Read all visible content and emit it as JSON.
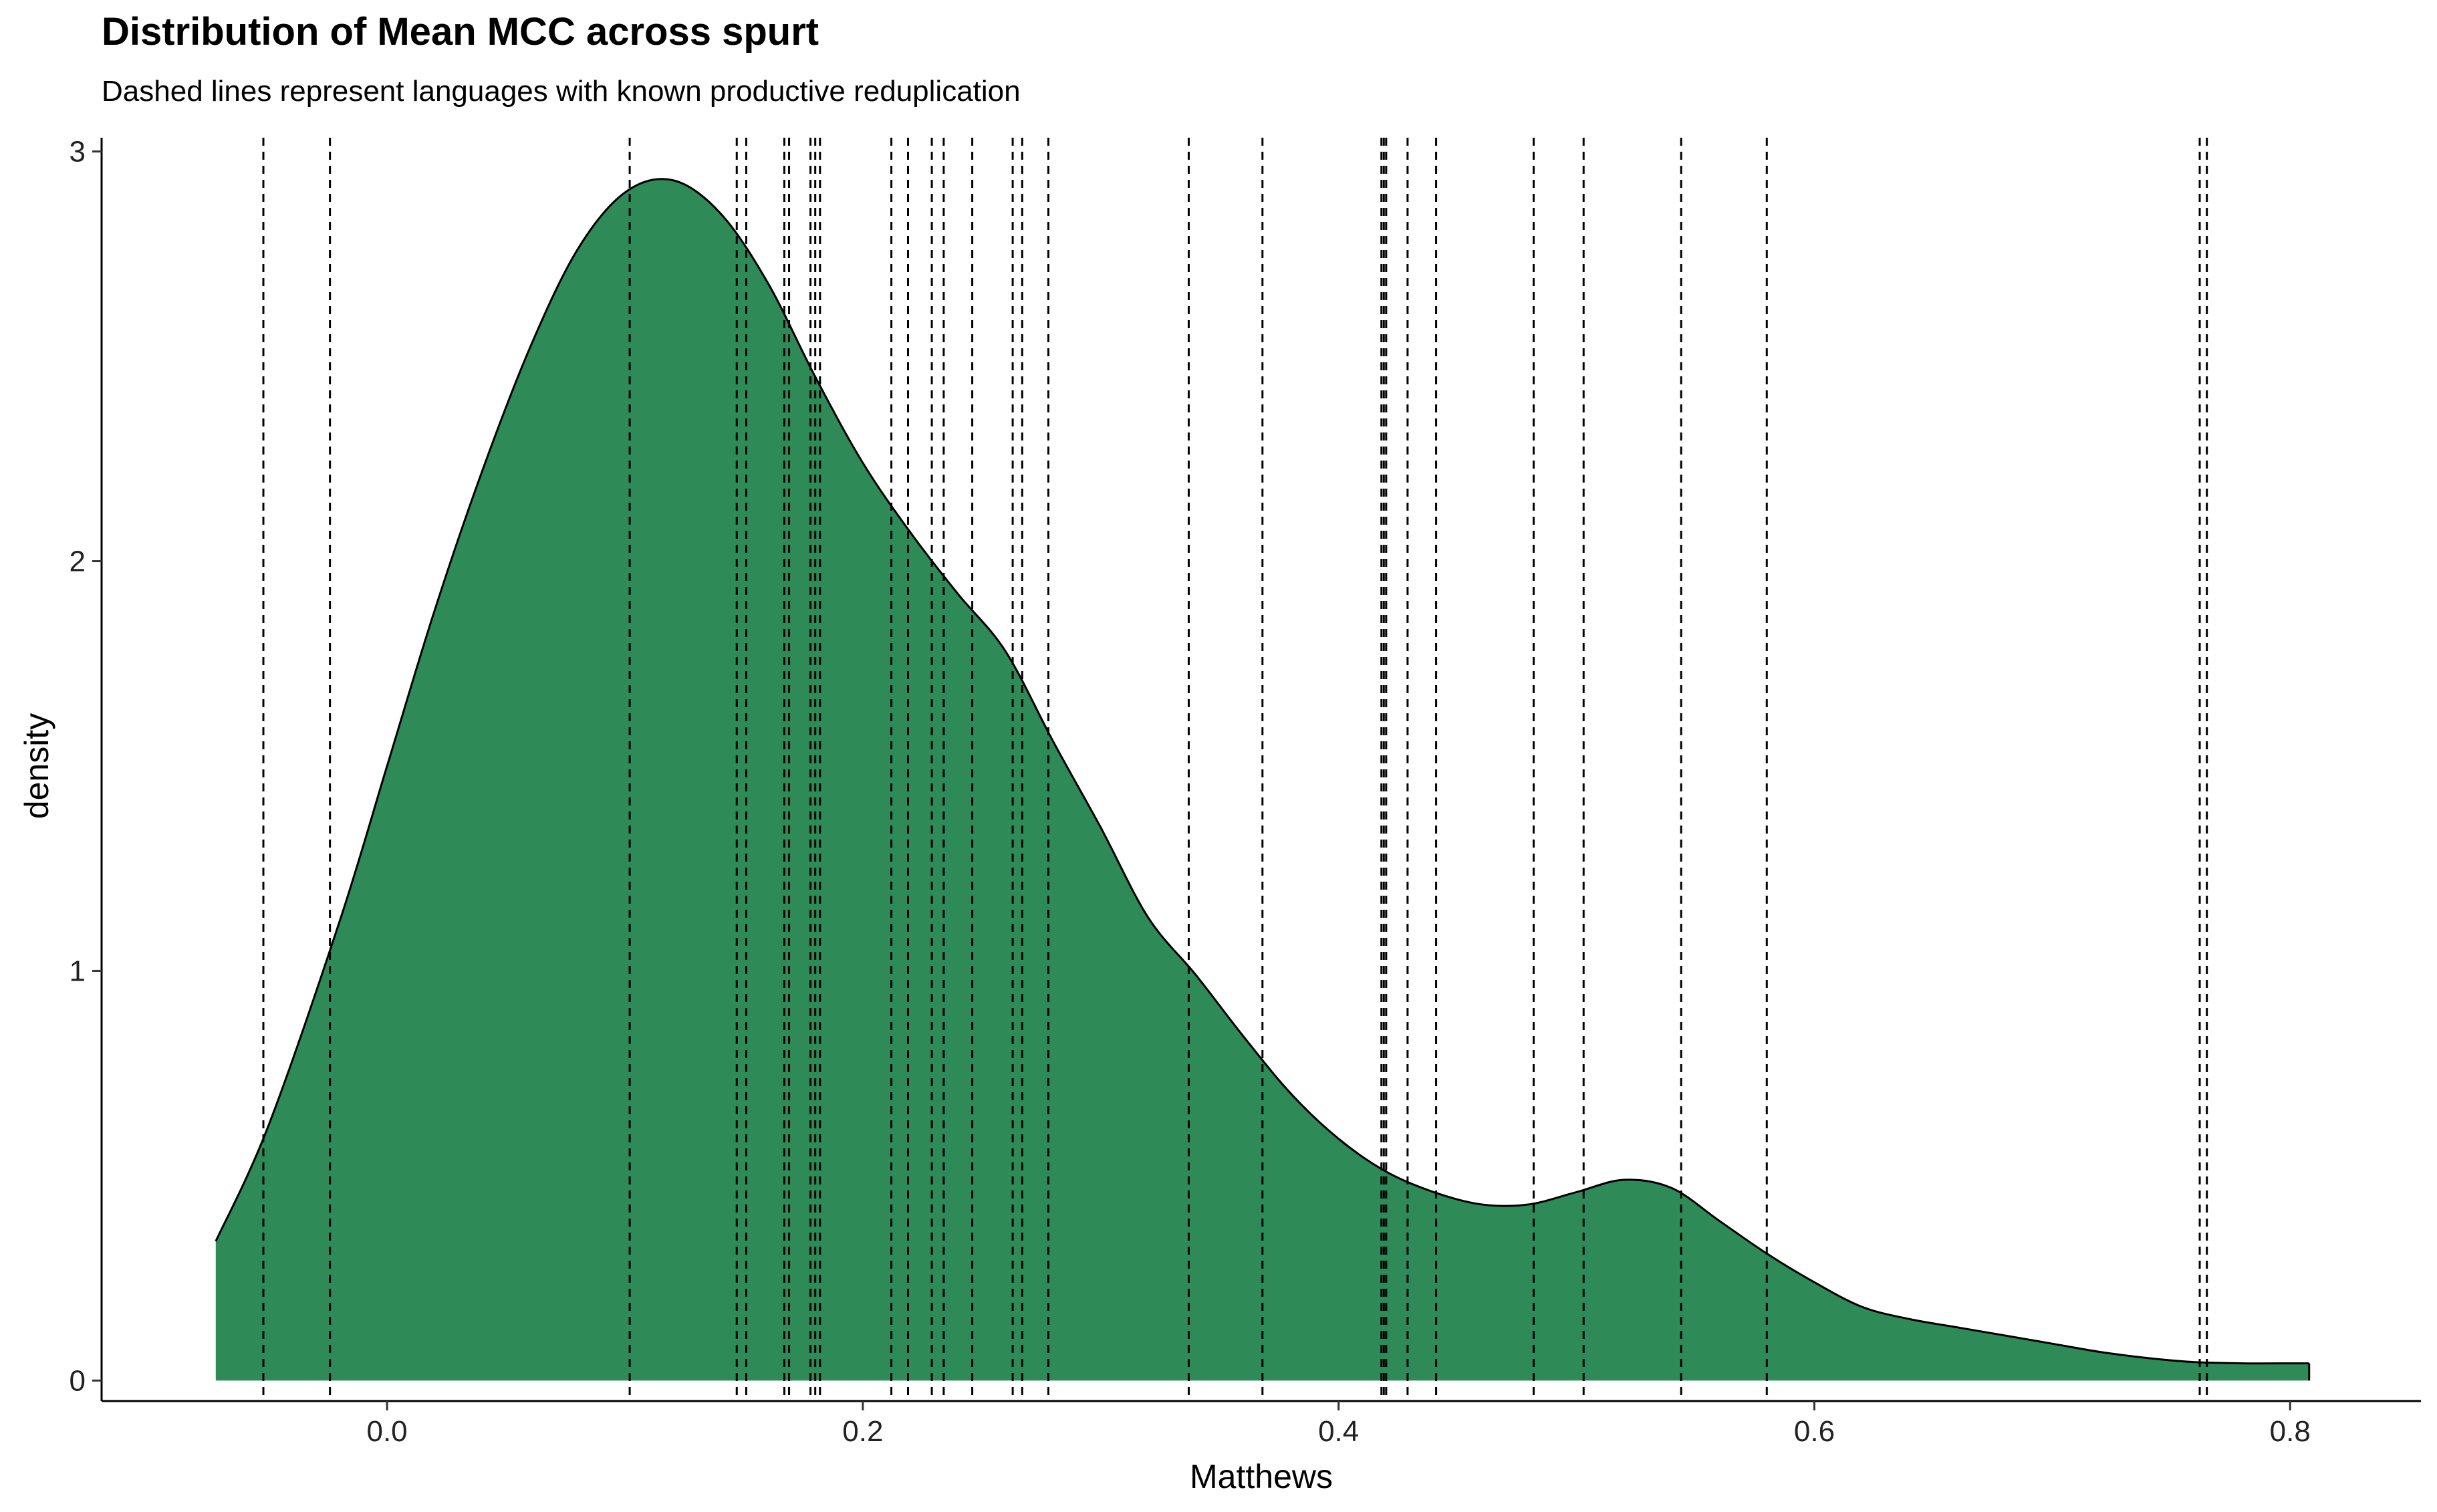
{
  "chart_data": {
    "type": "area",
    "title": "Distribution of Mean MCC across spurt",
    "subtitle": "Dashed lines represent languages with known productive reduplication",
    "xlabel": "Matthews",
    "ylabel": "density",
    "xlim": [
      -0.12,
      0.855
    ],
    "ylim": [
      -0.05,
      3.05
    ],
    "x_ticks": [
      0.0,
      0.2,
      0.4,
      0.6,
      0.8
    ],
    "x_tick_labels": [
      "0.0",
      "0.2",
      "0.4",
      "0.6",
      "0.8"
    ],
    "y_ticks": [
      0,
      1,
      2,
      3
    ],
    "y_tick_labels": [
      "0",
      "1",
      "2",
      "3"
    ],
    "grid": false,
    "fill_color": "#2e8b57",
    "line_color": "#000000",
    "density": {
      "x": [
        -0.072,
        -0.05,
        -0.02,
        0.0,
        0.02,
        0.04,
        0.06,
        0.08,
        0.1,
        0.12,
        0.14,
        0.16,
        0.18,
        0.2,
        0.22,
        0.24,
        0.26,
        0.28,
        0.3,
        0.32,
        0.34,
        0.36,
        0.38,
        0.4,
        0.42,
        0.44,
        0.46,
        0.48,
        0.5,
        0.52,
        0.54,
        0.56,
        0.58,
        0.6,
        0.62,
        0.64,
        0.66,
        0.68,
        0.7,
        0.72,
        0.74,
        0.76,
        0.78,
        0.8,
        0.808
      ],
      "y": [
        0.34,
        0.62,
        1.12,
        1.5,
        1.88,
        2.22,
        2.52,
        2.76,
        2.9,
        2.93,
        2.85,
        2.68,
        2.45,
        2.24,
        2.07,
        1.92,
        1.78,
        1.56,
        1.35,
        1.13,
        0.99,
        0.84,
        0.7,
        0.59,
        0.51,
        0.46,
        0.43,
        0.43,
        0.46,
        0.49,
        0.47,
        0.39,
        0.31,
        0.24,
        0.18,
        0.15,
        0.13,
        0.11,
        0.09,
        0.07,
        0.055,
        0.045,
        0.042,
        0.042,
        0.042
      ]
    },
    "reduplication_lines": [
      -0.052,
      -0.024,
      0.102,
      0.147,
      0.151,
      0.167,
      0.169,
      0.178,
      0.18,
      0.182,
      0.212,
      0.219,
      0.229,
      0.234,
      0.246,
      0.263,
      0.267,
      0.278,
      0.337,
      0.368,
      0.418,
      0.419,
      0.42,
      0.429,
      0.441,
      0.482,
      0.503,
      0.544,
      0.58,
      0.762,
      0.765
    ]
  }
}
